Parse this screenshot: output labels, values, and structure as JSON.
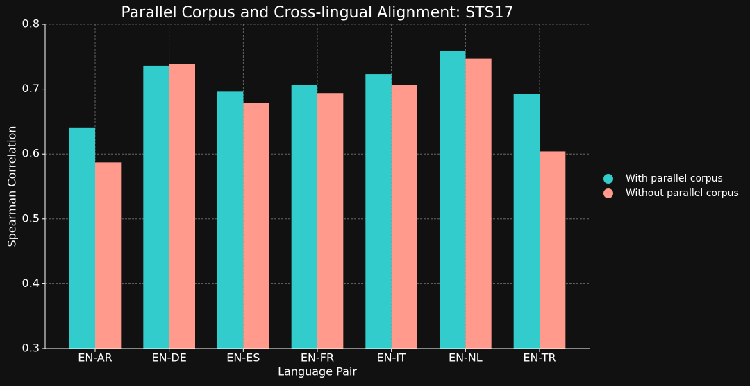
{
  "chart_data": {
    "type": "bar",
    "title": "Parallel Corpus and Cross-lingual Alignment: STS17",
    "x_label": "Language Pair",
    "y_label": "Spearman Correlation",
    "categories": [
      "EN-AR",
      "EN-DE",
      "EN-ES",
      "EN-FR",
      "EN-IT",
      "EN-NL",
      "EN-TR"
    ],
    "series": [
      {
        "name": "With parallel corpus",
        "color": "#33cccc",
        "values": [
          0.641,
          0.736,
          0.696,
          0.706,
          0.723,
          0.759,
          0.693
        ]
      },
      {
        "name": "Without parallel corpus",
        "color": "#ff9a8d",
        "values": [
          0.587,
          0.739,
          0.679,
          0.694,
          0.707,
          0.747,
          0.604
        ]
      }
    ],
    "ylim": [
      0.3,
      0.8
    ],
    "yticks": [
      0.3,
      0.4,
      0.5,
      0.6,
      0.7,
      0.8
    ],
    "grid": true,
    "legend": "right"
  }
}
